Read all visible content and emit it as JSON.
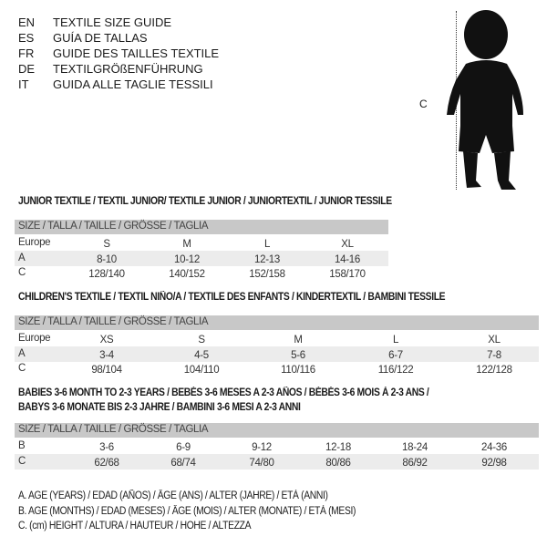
{
  "header": [
    {
      "code": "EN",
      "title": "TEXTILE SIZE GUIDE"
    },
    {
      "code": "ES",
      "title": "GUÍA DE TALLAS"
    },
    {
      "code": "FR",
      "title": "GUIDE DES TAILLES TEXTILE"
    },
    {
      "code": "DE",
      "title": "TEXTILGRÖßENFÜHRUNG"
    },
    {
      "code": "IT",
      "title": "GUIDA ALLE TAGLIE TESSILI"
    }
  ],
  "figure": {
    "measure_label": "C",
    "icon": "child-silhouette-icon"
  },
  "size_label": "SIZE / TALLA / TAILLE / GRÖSSE / TAGLIA",
  "junior": {
    "title": "JUNIOR TEXTILE / TEXTIL JUNIOR/ TEXTILE JUNIOR / JUNIORTEXTIL / JUNIOR TESSILE",
    "rows": [
      {
        "label": "Europe",
        "values": [
          "S",
          "M",
          "L",
          "XL"
        ]
      },
      {
        "label": "A",
        "values": [
          "8-10",
          "10-12",
          "12-13",
          "14-16"
        ]
      },
      {
        "label": "C",
        "values": [
          "128/140",
          "140/152",
          "152/158",
          "158/170"
        ]
      }
    ]
  },
  "children": {
    "title": "CHILDREN'S TEXTILE / TEXTIL NIÑO/A / TEXTILE DES ENFANTS / KINDERTEXTIL / BAMBINI TESSILE",
    "rows": [
      {
        "label": "Europe",
        "values": [
          "XS",
          "S",
          "M",
          "L",
          "XL"
        ]
      },
      {
        "label": "A",
        "values": [
          "3-4",
          "4-5",
          "5-6",
          "6-7",
          "7-8"
        ]
      },
      {
        "label": "C",
        "values": [
          "98/104",
          "104/110",
          "110/116",
          "116/122",
          "122/128"
        ]
      }
    ]
  },
  "babies": {
    "title_line1": "BABIES 3-6 MONTH TO 2-3 YEARS / BEBÉS 3-6 MESES A 2-3 AÑOS / BÉBÉS 3-6 MOIS À 2-3 ANS /",
    "title_line2": "BABYS 3-6 MONATE BIS 2-3 JAHRE / BAMBINI 3-6 MESI A 2-3 ANNI",
    "rows": [
      {
        "label": "B",
        "values": [
          "3-6",
          "6-9",
          "9-12",
          "12-18",
          "18-24",
          "24-36"
        ]
      },
      {
        "label": "C",
        "values": [
          "62/68",
          "68/74",
          "74/80",
          "80/86",
          "86/92",
          "92/98"
        ]
      }
    ]
  },
  "legend": [
    "A. AGE (YEARS) / EDAD (AÑOS) / ÂGE (ANS) / ALTER (JAHRE) / ETÀ (ANNI)",
    "B. AGE (MONTHS) / EDAD (MESES) / ÂGE (MOIS) / ALTER (MONATE) / ETÀ (MESI)",
    "C. (cm) HEIGHT / ALTURA / HAUTEUR / HÖHE / ALTEZZA"
  ]
}
